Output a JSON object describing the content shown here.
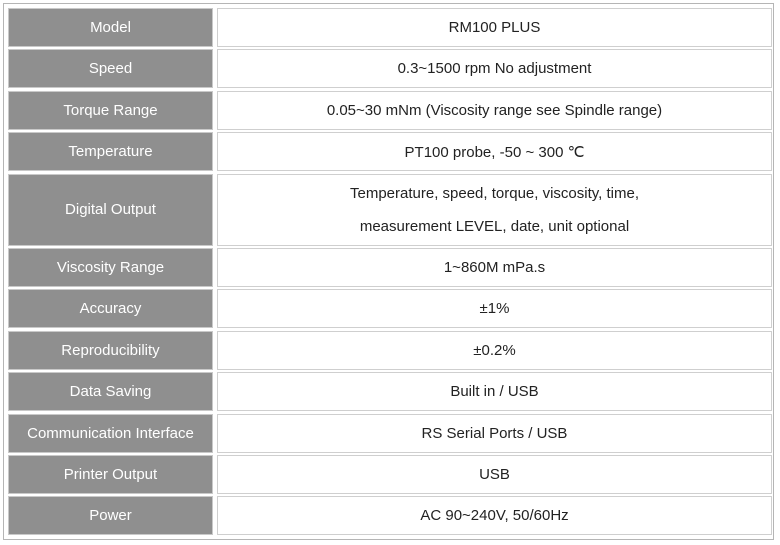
{
  "table": {
    "rows": [
      [
        "Model",
        "RM100 PLUS"
      ],
      [
        "Speed",
        "0.3~1500 rpm No adjustment"
      ],
      [
        "Torque Range",
        "0.05~30 mNm (Viscosity range see Spindle range)"
      ],
      [
        "Temperature",
        "PT100 probe, -50 ~ 300  ℃"
      ],
      [
        "Digital Output",
        [
          "Temperature, speed, torque, viscosity, time,",
          "measurement LEVEL, date, unit optional"
        ]
      ],
      [
        "Viscosity Range",
        "1~860M mPa.s"
      ],
      [
        "Accuracy",
        "±1%"
      ],
      [
        "Reproducibility",
        "±0.2%"
      ],
      [
        "Data Saving",
        "Built in / USB"
      ],
      [
        "Communication Interface",
        "RS Serial Ports / USB"
      ],
      [
        "Printer Output",
        "USB"
      ],
      [
        "Power",
        "AC 90~240V, 50/60Hz"
      ]
    ]
  }
}
